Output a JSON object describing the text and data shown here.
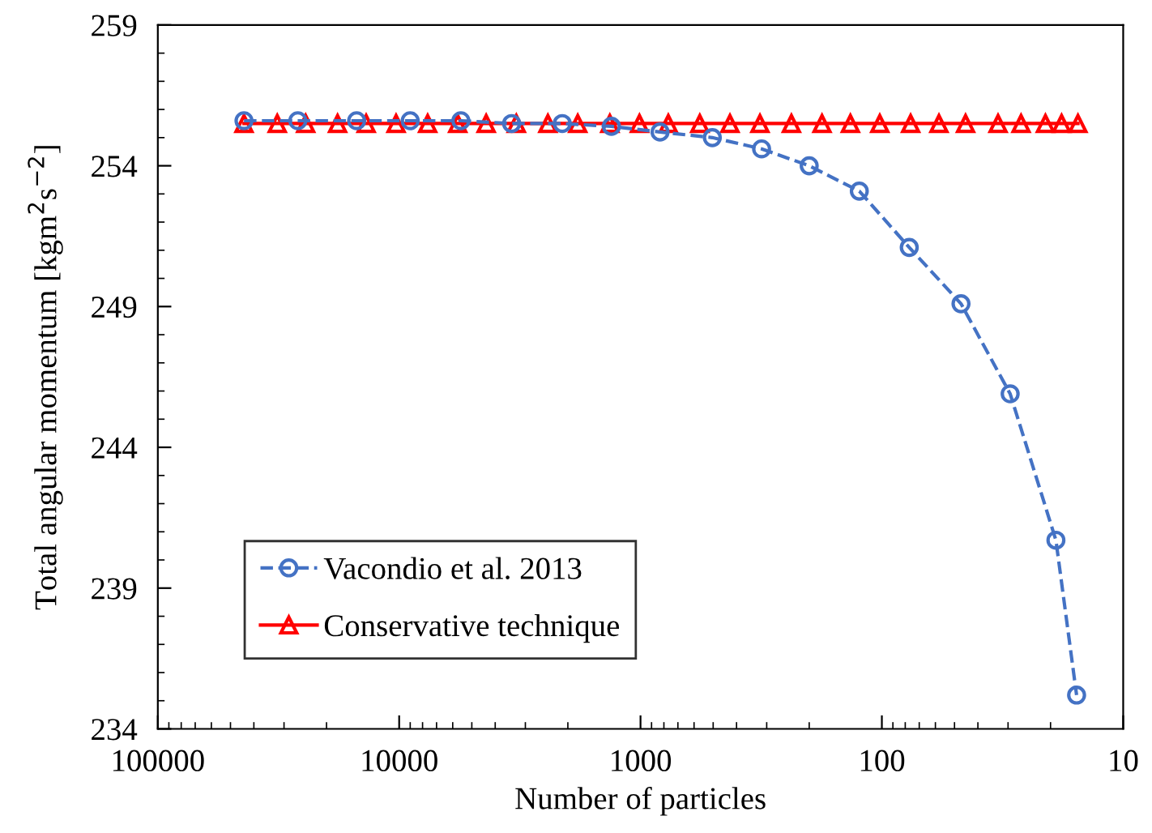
{
  "chart_data": {
    "type": "line",
    "xlabel": "Number of particles",
    "ylabel": "Total angular momentum [kgm$^{2}$s$^{−2}$]",
    "log": "x",
    "xlim": [
      100000,
      10
    ],
    "xticks": [
      100000,
      10000,
      1000,
      100,
      10
    ],
    "ylim": [
      234,
      259
    ],
    "yticks": [
      234,
      239,
      244,
      249,
      254,
      259
    ],
    "grid": false,
    "legend": "bottom left",
    "series": [
      {
        "name": "Vacondio et al. 2013",
        "color": "#4472c4",
        "marker": "circle",
        "line_style": "dashed",
        "x": [
          43950,
          26300,
          15000,
          9000,
          5550,
          3420,
          2110,
          1320,
          830,
          504,
          315,
          200,
          124,
          77,
          47,
          29.4,
          19,
          15.6
        ],
        "values": [
          255.6,
          255.6,
          255.6,
          255.6,
          255.6,
          255.5,
          255.5,
          255.4,
          255.2,
          255.0,
          254.6,
          254.0,
          253.1,
          251.1,
          249.1,
          245.9,
          240.7,
          235.2
        ]
      },
      {
        "name": "Conservative technique",
        "color": "#ff0000",
        "marker": "triangle",
        "line_style": "solid",
        "x": [
          43950,
          32000,
          24400,
          18000,
          13700,
          10300,
          7620,
          5720,
          4360,
          3270,
          2420,
          1820,
          1340,
          1010,
          767,
          568,
          426,
          320,
          237,
          177,
          135,
          102,
          76,
          58,
          45,
          33,
          26.5,
          21,
          18,
          15.4
        ],
        "values": [
          255.5,
          255.5,
          255.5,
          255.5,
          255.5,
          255.5,
          255.5,
          255.5,
          255.5,
          255.5,
          255.5,
          255.5,
          255.5,
          255.5,
          255.5,
          255.5,
          255.5,
          255.5,
          255.5,
          255.5,
          255.5,
          255.5,
          255.5,
          255.5,
          255.5,
          255.5,
          255.5,
          255.5,
          255.5,
          255.5
        ]
      }
    ]
  }
}
